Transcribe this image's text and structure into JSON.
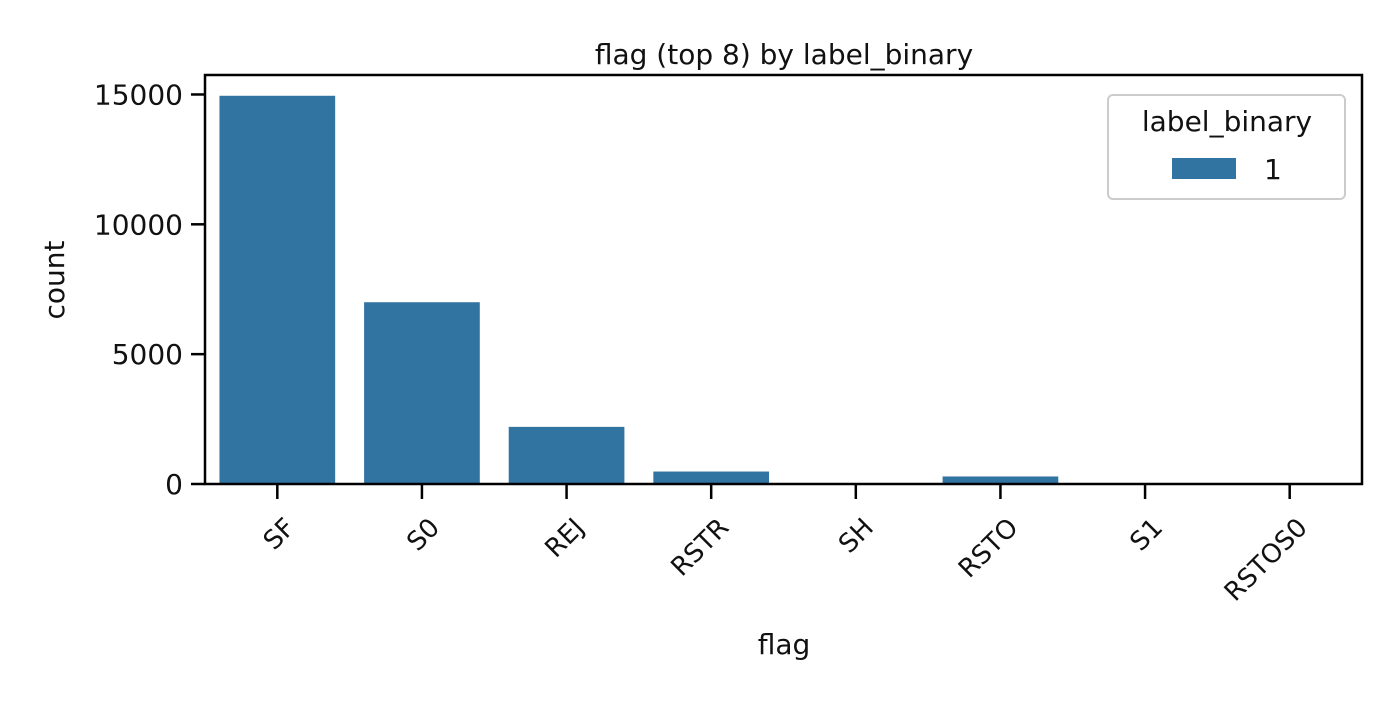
{
  "chart_data": {
    "type": "bar",
    "title": "flag (top 8) by label_binary",
    "xlabel": "flag",
    "ylabel": "count",
    "categories": [
      "SF",
      "S0",
      "REJ",
      "RSTR",
      "SH",
      "RSTO",
      "S1",
      "RSTOS0"
    ],
    "series": [
      {
        "name": "1",
        "values": [
          14950,
          7000,
          2200,
          480,
          8,
          290,
          30,
          5
        ]
      }
    ],
    "ylim": [
      0,
      15750
    ],
    "yticks": [
      0,
      5000,
      10000,
      15000
    ],
    "grid": false,
    "legend": {
      "title": "label_binary",
      "position": "top-right"
    },
    "colors": {
      "bar": "#3274a1",
      "axis": "#000000"
    }
  }
}
